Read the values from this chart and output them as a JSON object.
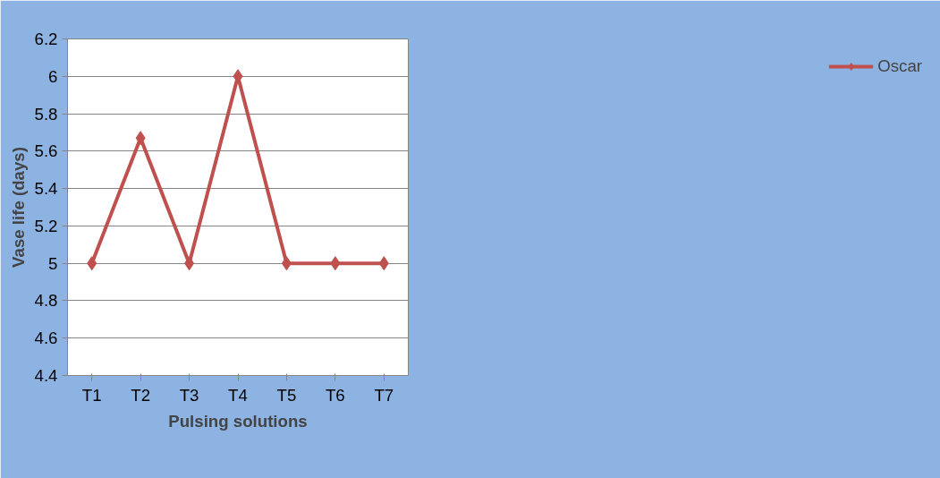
{
  "chart_data": {
    "type": "line",
    "xlabel": "Pulsing solutions",
    "ylabel": "Vase life (days)",
    "categories": [
      "T1",
      "T2",
      "T3",
      "T4",
      "T5",
      "T6",
      "T7"
    ],
    "series": [
      {
        "name": "Oscar",
        "color": "#c0504d",
        "values": [
          5,
          5.67,
          5,
          6,
          5,
          5,
          5
        ]
      }
    ],
    "ylim": [
      4.4,
      6.2
    ],
    "yticks": [
      4.4,
      4.6,
      4.8,
      5,
      5.2,
      5.4,
      5.6,
      5.8,
      6,
      6.2
    ],
    "grid": "y",
    "legend": "right",
    "marker": "diamond",
    "line_style": "solid"
  }
}
